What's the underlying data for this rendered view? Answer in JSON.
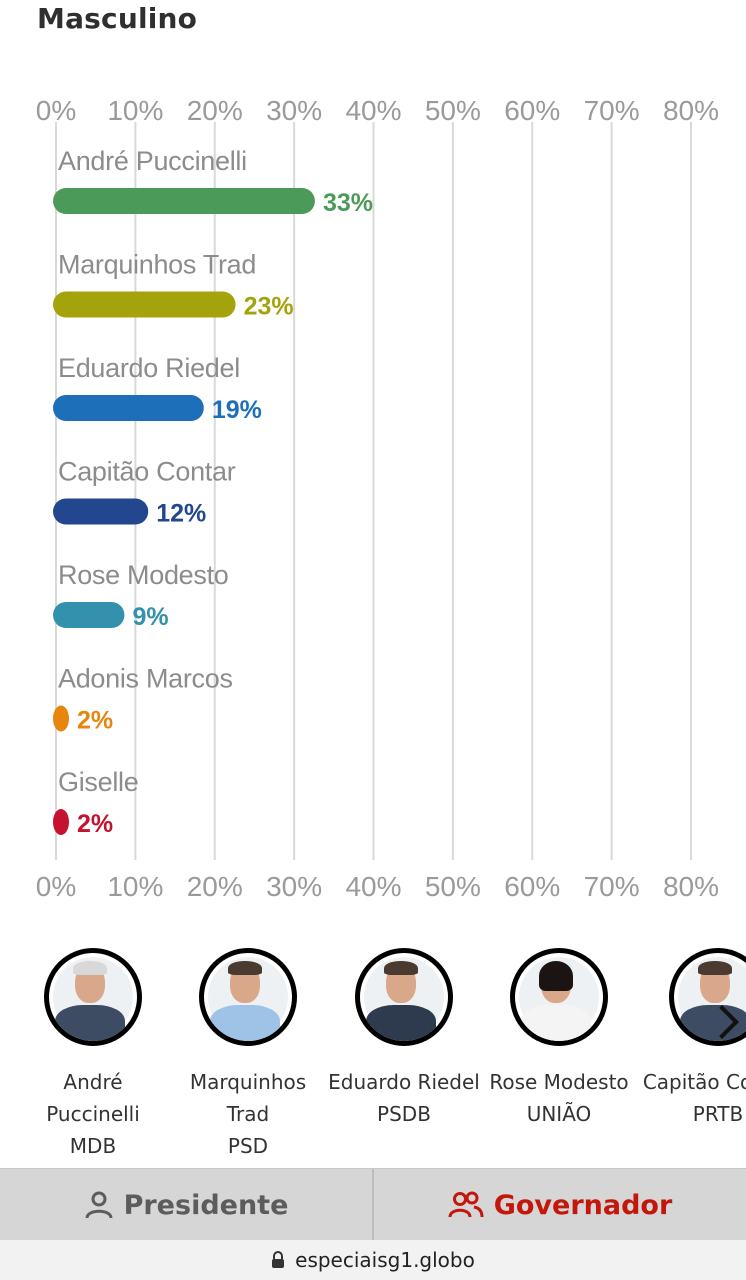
{
  "section_title": "Masculino",
  "chart_data": {
    "type": "bar",
    "orientation": "horizontal",
    "xlim": [
      0,
      80
    ],
    "ticks": [
      "0%",
      "10%",
      "20%",
      "30%",
      "40%",
      "50%",
      "60%",
      "70%",
      "80%"
    ],
    "grid": true,
    "categories": [
      "André Puccinelli",
      "Marquinhos Trad",
      "Eduardo Riedel",
      "Capitão Contar",
      "Rose Modesto",
      "Adonis Marcos",
      "Giselle"
    ],
    "values": [
      33,
      23,
      19,
      12,
      9,
      2,
      2
    ],
    "labels": [
      "33%",
      "23%",
      "19%",
      "12%",
      "9%",
      "2%",
      "2%"
    ],
    "colors": [
      "#4c9a59",
      "#a4a30b",
      "#1e6fb9",
      "#22478f",
      "#3391ad",
      "#e8850d",
      "#c5122e"
    ]
  },
  "candidates": [
    {
      "name": "André Puccinelli",
      "party": "MDB",
      "color": "#4c9a59"
    },
    {
      "name": "Marquinhos Trad",
      "party": "PSD",
      "color": "#a4a30b"
    },
    {
      "name": "Eduardo Riedel",
      "party": "PSDB",
      "color": "#1e6fb9"
    },
    {
      "name": "Rose Modesto",
      "party": "UNIÃO",
      "color": "#3391ad"
    },
    {
      "name": "Capitão Contar",
      "party": "PRTB",
      "color": "#22478f"
    }
  ],
  "carousel": {
    "next_icon": "chevron-right-icon"
  },
  "tabs": [
    {
      "label": "Presidente",
      "icon": "person-icon",
      "active": false
    },
    {
      "label": "Governador",
      "icon": "people-icon",
      "active": true
    }
  ],
  "browser": {
    "url": "especiaisg1.globo",
    "lock_icon": "lock-icon"
  }
}
